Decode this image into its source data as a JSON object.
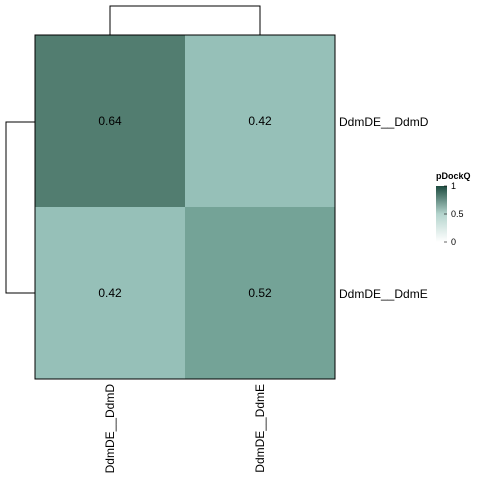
{
  "chart_data": {
    "type": "heatmap",
    "rows": [
      "DdmDE__DdmD",
      "DdmDE__DdmE"
    ],
    "columns": [
      "DdmDE__DdmD",
      "DdmDE__DdmE"
    ],
    "values": [
      [
        0.64,
        0.42
      ],
      [
        0.42,
        0.52
      ]
    ],
    "cell_labels": [
      [
        "0.64",
        "0.42"
      ],
      [
        "0.42",
        "0.52"
      ]
    ],
    "legend": {
      "title": "pDockQ",
      "ticks": [
        "0",
        "0.5",
        "1"
      ],
      "range": [
        0,
        1
      ],
      "colors": [
        "#ffffff",
        "#b4d4cd",
        "#1d4b3f"
      ]
    },
    "row_dendrogram": true,
    "column_dendrogram": true,
    "colors": {
      "cell_0.64": "#527d70",
      "cell_0.52": "#74a397",
      "cell_0.42": "#96c0b8",
      "border": "#000000"
    }
  }
}
